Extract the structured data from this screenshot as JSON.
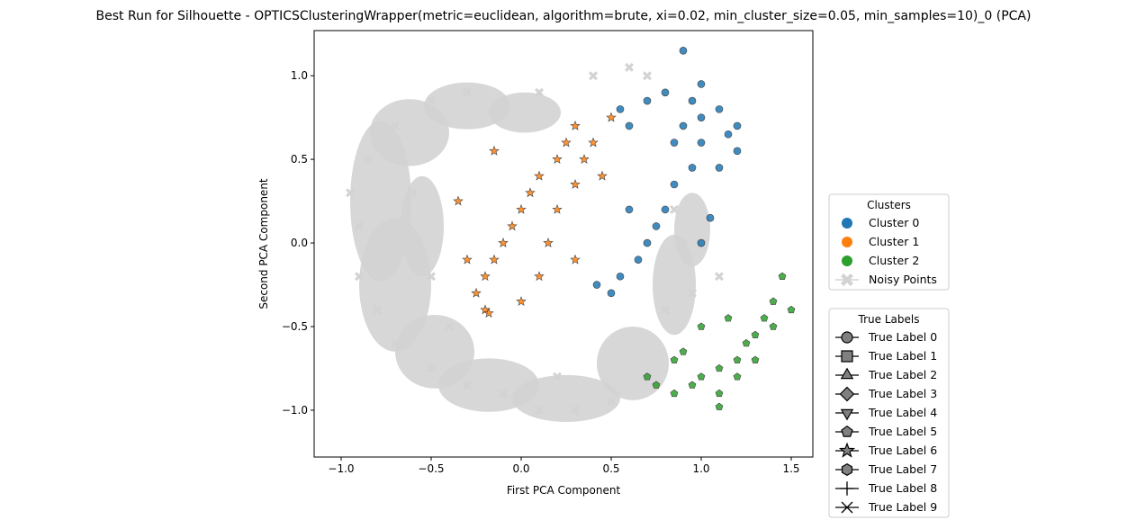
{
  "chart_data": {
    "type": "scatter",
    "title": "Best Run for Silhouette - OPTICSClusteringWrapper(metric=euclidean, algorithm=brute, xi=0.02, min_cluster_size=0.05, min_samples=10)_0 (PCA)",
    "xlabel": "First PCA Component",
    "ylabel": "Second PCA Component",
    "xlim": [
      -1.15,
      1.62
    ],
    "ylim": [
      -1.28,
      1.27
    ],
    "xticks": [
      -1.0,
      -0.5,
      0.0,
      0.5,
      1.0,
      1.5
    ],
    "xtick_labels": [
      "−1.0",
      "−0.5",
      "0.0",
      "0.5",
      "1.0",
      "1.5"
    ],
    "yticks": [
      -1.0,
      -0.5,
      0.0,
      0.5,
      1.0
    ],
    "ytick_labels": [
      "−1.0",
      "−0.5",
      "0.0",
      "0.5",
      "1.0"
    ],
    "grid": false,
    "series": [
      {
        "name": "Noisy Points",
        "color": "#d3d3d3",
        "marker": "x-filled",
        "points": [
          [
            -0.9,
            0.1
          ],
          [
            -0.95,
            0.3
          ],
          [
            -0.85,
            0.5
          ],
          [
            -0.7,
            0.7
          ],
          [
            -0.5,
            0.85
          ],
          [
            -0.3,
            0.9
          ],
          [
            -0.1,
            0.85
          ],
          [
            0.1,
            0.9
          ],
          [
            -0.9,
            -0.2
          ],
          [
            -0.8,
            -0.4
          ],
          [
            -0.7,
            -0.6
          ],
          [
            -0.5,
            -0.75
          ],
          [
            -0.3,
            -0.85
          ],
          [
            -0.1,
            -0.9
          ],
          [
            0.1,
            -1.0
          ],
          [
            0.3,
            -1.0
          ],
          [
            0.5,
            -0.95
          ],
          [
            0.7,
            -0.8
          ],
          [
            0.8,
            -0.4
          ],
          [
            0.9,
            0.0
          ],
          [
            0.85,
            0.2
          ],
          [
            0.6,
            1.05
          ],
          [
            0.7,
            1.0
          ],
          [
            0.4,
            1.0
          ],
          [
            -0.6,
            0.3
          ],
          [
            -0.5,
            -0.2
          ],
          [
            -0.4,
            -0.5
          ],
          [
            0.2,
            -0.8
          ],
          [
            0.95,
            -0.3
          ],
          [
            1.1,
            -0.2
          ]
        ]
      },
      {
        "name": "Cluster 0",
        "color": "#1f77b4",
        "marker": "circle",
        "points": [
          [
            0.9,
            1.15
          ],
          [
            1.0,
            0.95
          ],
          [
            0.95,
            0.85
          ],
          [
            1.1,
            0.8
          ],
          [
            1.2,
            0.7
          ],
          [
            0.8,
            0.9
          ],
          [
            0.7,
            0.85
          ],
          [
            0.55,
            0.8
          ],
          [
            0.6,
            0.7
          ],
          [
            0.9,
            0.7
          ],
          [
            1.0,
            0.6
          ],
          [
            1.2,
            0.55
          ],
          [
            1.1,
            0.45
          ],
          [
            0.95,
            0.45
          ],
          [
            0.85,
            0.35
          ],
          [
            0.8,
            0.2
          ],
          [
            0.75,
            0.1
          ],
          [
            0.7,
            0.0
          ],
          [
            0.65,
            -0.1
          ],
          [
            0.55,
            -0.2
          ],
          [
            0.5,
            -0.3
          ],
          [
            1.0,
            0.0
          ],
          [
            1.05,
            0.15
          ],
          [
            0.6,
            0.2
          ],
          [
            0.42,
            -0.25
          ],
          [
            1.15,
            0.65
          ],
          [
            1.0,
            0.75
          ],
          [
            0.85,
            0.6
          ]
        ]
      },
      {
        "name": "Cluster 1",
        "color": "#ff7f0e",
        "marker": "star",
        "points": [
          [
            0.3,
            0.7
          ],
          [
            0.25,
            0.6
          ],
          [
            0.2,
            0.5
          ],
          [
            0.1,
            0.4
          ],
          [
            0.05,
            0.3
          ],
          [
            0.0,
            0.2
          ],
          [
            -0.05,
            0.1
          ],
          [
            -0.1,
            0.0
          ],
          [
            -0.15,
            -0.1
          ],
          [
            -0.2,
            -0.2
          ],
          [
            -0.25,
            -0.3
          ],
          [
            -0.2,
            -0.4
          ],
          [
            0.0,
            -0.35
          ],
          [
            0.1,
            -0.2
          ],
          [
            0.15,
            0.0
          ],
          [
            0.2,
            0.2
          ],
          [
            0.3,
            0.35
          ],
          [
            0.35,
            0.5
          ],
          [
            0.4,
            0.6
          ],
          [
            0.5,
            0.75
          ],
          [
            -0.15,
            0.55
          ],
          [
            -0.35,
            0.25
          ],
          [
            -0.3,
            -0.1
          ],
          [
            0.3,
            -0.1
          ],
          [
            -0.18,
            -0.42
          ],
          [
            0.45,
            0.4
          ]
        ]
      },
      {
        "name": "Cluster 2",
        "color": "#2ca02c",
        "marker": "pentagon",
        "points": [
          [
            1.45,
            -0.2
          ],
          [
            1.4,
            -0.35
          ],
          [
            1.35,
            -0.45
          ],
          [
            1.3,
            -0.55
          ],
          [
            1.25,
            -0.6
          ],
          [
            1.2,
            -0.7
          ],
          [
            1.1,
            -0.75
          ],
          [
            1.0,
            -0.8
          ],
          [
            0.95,
            -0.85
          ],
          [
            0.85,
            -0.9
          ],
          [
            0.75,
            -0.85
          ],
          [
            0.7,
            -0.8
          ],
          [
            1.1,
            -0.9
          ],
          [
            1.2,
            -0.8
          ],
          [
            1.3,
            -0.7
          ],
          [
            1.4,
            -0.5
          ],
          [
            1.5,
            -0.4
          ],
          [
            1.15,
            -0.45
          ],
          [
            1.0,
            -0.5
          ],
          [
            0.85,
            -0.7
          ],
          [
            1.1,
            -0.98
          ],
          [
            0.9,
            -0.65
          ]
        ]
      }
    ],
    "legends": [
      {
        "title": "Clusters",
        "entries": [
          {
            "label": "Cluster 0",
            "color": "#1f77b4",
            "icon": "dot"
          },
          {
            "label": "Cluster 1",
            "color": "#ff7f0e",
            "icon": "dot"
          },
          {
            "label": "Cluster 2",
            "color": "#2ca02c",
            "icon": "dot"
          },
          {
            "label": "Noisy Points",
            "color": "#d3d3d3",
            "icon": "x-filled"
          }
        ],
        "placement": "right"
      },
      {
        "title": "True Labels",
        "entries": [
          {
            "label": "True Label 0",
            "icon": "circle"
          },
          {
            "label": "True Label 1",
            "icon": "square"
          },
          {
            "label": "True Label 2",
            "icon": "triangle-up"
          },
          {
            "label": "True Label 3",
            "icon": "diamond"
          },
          {
            "label": "True Label 4",
            "icon": "triangle-down"
          },
          {
            "label": "True Label 5",
            "icon": "pentagon"
          },
          {
            "label": "True Label 6",
            "icon": "star"
          },
          {
            "label": "True Label 7",
            "icon": "hexagon"
          },
          {
            "label": "True Label 8",
            "icon": "plus"
          },
          {
            "label": "True Label 9",
            "icon": "x"
          }
        ],
        "placement": "right"
      }
    ]
  }
}
